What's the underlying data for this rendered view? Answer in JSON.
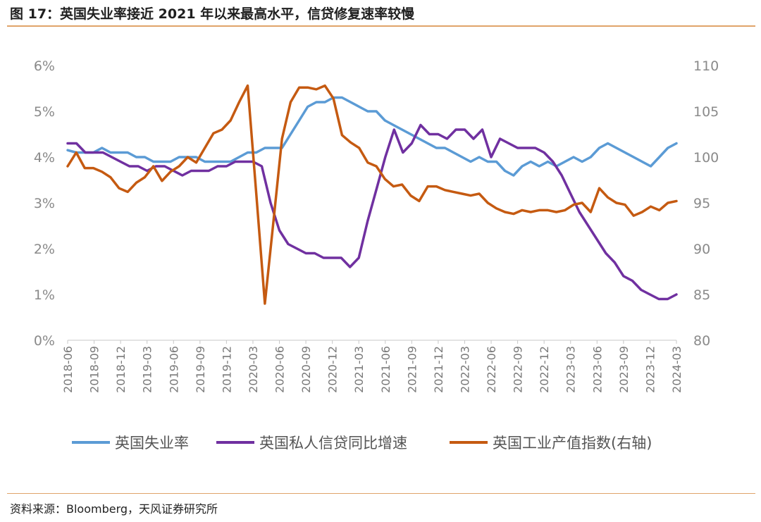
{
  "header": {
    "title": "图 17：英国失业率接近 2021 年以来最高水平，信贷修复速率较慢"
  },
  "footer": {
    "source": "资料来源：Bloomberg，天风证券研究所"
  },
  "chart_data": {
    "type": "line",
    "title": "",
    "y_left": {
      "min": 0,
      "max": 6,
      "ticks": [
        "0%",
        "1%",
        "2%",
        "3%",
        "4%",
        "5%",
        "6%"
      ],
      "tick_values": [
        0,
        1,
        2,
        3,
        4,
        5,
        6
      ]
    },
    "y_right": {
      "min": 80,
      "max": 110,
      "ticks": [
        "80",
        "85",
        "90",
        "95",
        "100",
        "105",
        "110"
      ],
      "tick_values": [
        80,
        85,
        90,
        95,
        100,
        105,
        110
      ]
    },
    "x_ticks": [
      "2018-06",
      "2018-09",
      "2018-12",
      "2019-03",
      "2019-06",
      "2019-09",
      "2019-12",
      "2020-03",
      "2020-06",
      "2020-09",
      "2020-12",
      "2021-03",
      "2021-06",
      "2021-09",
      "2021-12",
      "2022-03",
      "2022-06",
      "2022-09",
      "2022-12",
      "2023-03",
      "2023-06",
      "2023-09",
      "2023-12",
      "2024-03"
    ],
    "legend_position": "bottom",
    "series": [
      {
        "name": "英国失业率",
        "axis": "left",
        "color": "#5b9bd5",
        "values": [
          4.15,
          4.1,
          4.1,
          4.1,
          4.2,
          4.1,
          4.1,
          4.1,
          4.0,
          4.0,
          3.9,
          3.9,
          3.9,
          4.0,
          4.0,
          4.0,
          3.9,
          3.9,
          3.9,
          3.9,
          4.0,
          4.1,
          4.1,
          4.2,
          4.2,
          4.2,
          4.5,
          4.8,
          5.1,
          5.2,
          5.2,
          5.3,
          5.3,
          5.2,
          5.1,
          5.0,
          5.0,
          4.8,
          4.7,
          4.6,
          4.5,
          4.4,
          4.3,
          4.2,
          4.2,
          4.1,
          4.0,
          3.9,
          4.0,
          3.9,
          3.9,
          3.7,
          3.6,
          3.8,
          3.9,
          3.8,
          3.9,
          3.8,
          3.9,
          4.0,
          3.9,
          4.0,
          4.2,
          4.3,
          4.2,
          4.1,
          4.0,
          3.9,
          3.8,
          4.0,
          4.2,
          4.3
        ]
      },
      {
        "name": "英国私人信贷同比增速",
        "axis": "left",
        "color": "#7030a0",
        "values": [
          4.3,
          4.3,
          4.1,
          4.1,
          4.1,
          4.0,
          3.9,
          3.8,
          3.8,
          3.7,
          3.8,
          3.8,
          3.7,
          3.6,
          3.7,
          3.7,
          3.7,
          3.8,
          3.8,
          3.9,
          3.9,
          3.9,
          3.8,
          3.0,
          2.4,
          2.1,
          2.0,
          1.9,
          1.9,
          1.8,
          1.8,
          1.8,
          1.6,
          1.8,
          2.6,
          3.3,
          4.0,
          4.6,
          4.1,
          4.3,
          4.7,
          4.5,
          4.5,
          4.4,
          4.6,
          4.6,
          4.4,
          4.6,
          4.0,
          4.4,
          4.3,
          4.2,
          4.2,
          4.2,
          4.1,
          3.9,
          3.6,
          3.2,
          2.8,
          2.5,
          2.2,
          1.9,
          1.7,
          1.4,
          1.3,
          1.1,
          1.0,
          0.9,
          0.9,
          1.0
        ]
      },
      {
        "name": "英国工业产值指数(右轴)",
        "axis": "right",
        "color": "#c55a11",
        "values": [
          99,
          100.5,
          98.8,
          98.8,
          98.4,
          97.8,
          96.6,
          96.2,
          97.2,
          97.8,
          99,
          97.4,
          98.4,
          99,
          100,
          99.4,
          101,
          102.6,
          103,
          104,
          106,
          107.8,
          96,
          84,
          93,
          102,
          106,
          107.6,
          107.6,
          107.4,
          107.8,
          106.4,
          102.4,
          101.6,
          101,
          99.4,
          99,
          97.6,
          96.8,
          97,
          95.8,
          95.2,
          96.8,
          96.8,
          96.4,
          96.2,
          96.0,
          95.8,
          96.0,
          95.0,
          94.4,
          94.0,
          93.8,
          94.2,
          94.0,
          94.2,
          94.2,
          94.0,
          94.2,
          94.8,
          95.0,
          94.0,
          96.6,
          95.6,
          95.0,
          94.8,
          93.6,
          94.0,
          94.6,
          94.2,
          95.0,
          95.2
        ]
      }
    ]
  }
}
